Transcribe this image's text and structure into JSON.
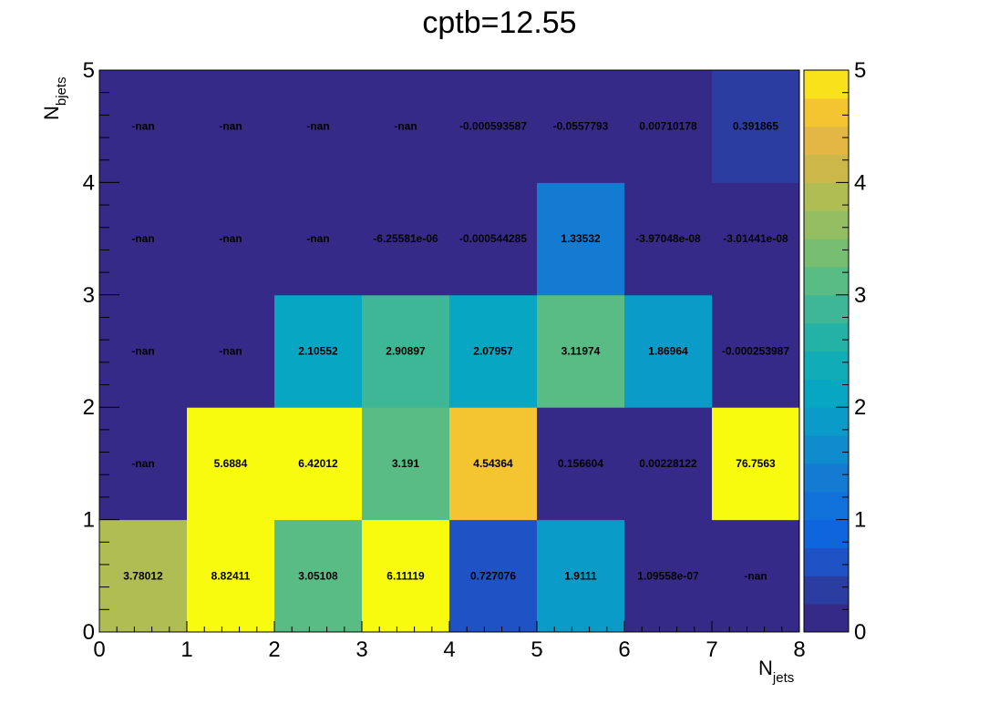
{
  "chart_data": {
    "type": "heatmap",
    "title": "cptb=12.55",
    "xlabel": {
      "main": "N",
      "sub": "jets"
    },
    "ylabel": {
      "main": "N",
      "sub": "bjets"
    },
    "xlim": [
      0,
      8
    ],
    "ylim": [
      0,
      5
    ],
    "zlim": [
      0,
      5
    ],
    "x_ticks": [
      "0",
      "1",
      "2",
      "3",
      "4",
      "5",
      "6",
      "7",
      "8"
    ],
    "y_ticks": [
      "0",
      "1",
      "2",
      "3",
      "4",
      "5"
    ],
    "colorbar_ticks": [
      "0",
      "1",
      "2",
      "3",
      "4",
      "5"
    ],
    "colorbar_levels": 20,
    "palette": [
      "#352a87",
      "#2b3da0",
      "#1f52c4",
      "#0f65dd",
      "#1171db",
      "#137cd2",
      "#0f8ccd",
      "#0b9bc8",
      "#07a6c2",
      "#11adb6",
      "#25b2a6",
      "#3db795",
      "#59bc84",
      "#77bd72",
      "#93bf62",
      "#b0bd53",
      "#cbb849",
      "#e2b743",
      "#f5c431",
      "#f9e11b",
      "#f9fb0e"
    ],
    "nan_color": "#352a87",
    "cells": [
      {
        "x": 0,
        "y": 0,
        "label": "3.78012",
        "value": 3.78012
      },
      {
        "x": 1,
        "y": 0,
        "label": "8.82411",
        "value": 8.82411
      },
      {
        "x": 2,
        "y": 0,
        "label": "3.05108",
        "value": 3.05108
      },
      {
        "x": 3,
        "y": 0,
        "label": "6.11119",
        "value": 6.11119
      },
      {
        "x": 4,
        "y": 0,
        "label": "0.727076",
        "value": 0.727076
      },
      {
        "x": 5,
        "y": 0,
        "label": "1.9111",
        "value": 1.9111
      },
      {
        "x": 6,
        "y": 0,
        "label": "1.09558e-07",
        "value": 1.09558e-07
      },
      {
        "x": 7,
        "y": 0,
        "label": "-nan",
        "value": null
      },
      {
        "x": 0,
        "y": 1,
        "label": "-nan",
        "value": null
      },
      {
        "x": 1,
        "y": 1,
        "label": "5.6884",
        "value": 5.6884
      },
      {
        "x": 2,
        "y": 1,
        "label": "6.42012",
        "value": 6.42012
      },
      {
        "x": 3,
        "y": 1,
        "label": "3.191",
        "value": 3.191
      },
      {
        "x": 4,
        "y": 1,
        "label": "4.54364",
        "value": 4.54364
      },
      {
        "x": 5,
        "y": 1,
        "label": "0.156604",
        "value": 0.156604
      },
      {
        "x": 6,
        "y": 1,
        "label": "0.00228122",
        "value": 0.00228122
      },
      {
        "x": 7,
        "y": 1,
        "label": "76.7563",
        "value": 76.7563
      },
      {
        "x": 0,
        "y": 2,
        "label": "-nan",
        "value": null
      },
      {
        "x": 1,
        "y": 2,
        "label": "-nan",
        "value": null
      },
      {
        "x": 2,
        "y": 2,
        "label": "2.10552",
        "value": 2.10552
      },
      {
        "x": 3,
        "y": 2,
        "label": "2.90897",
        "value": 2.90897
      },
      {
        "x": 4,
        "y": 2,
        "label": "2.07957",
        "value": 2.07957
      },
      {
        "x": 5,
        "y": 2,
        "label": "3.11974",
        "value": 3.11974
      },
      {
        "x": 6,
        "y": 2,
        "label": "1.86964",
        "value": 1.86964
      },
      {
        "x": 7,
        "y": 2,
        "label": "-0.000253987",
        "value": -0.000253987
      },
      {
        "x": 0,
        "y": 3,
        "label": "-nan",
        "value": null
      },
      {
        "x": 1,
        "y": 3,
        "label": "-nan",
        "value": null
      },
      {
        "x": 2,
        "y": 3,
        "label": "-nan",
        "value": null
      },
      {
        "x": 3,
        "y": 3,
        "label": "-6.25581e-06",
        "value": -6.25581e-06
      },
      {
        "x": 4,
        "y": 3,
        "label": "-0.000544285",
        "value": -0.000544285
      },
      {
        "x": 5,
        "y": 3,
        "label": "1.33532",
        "value": 1.33532
      },
      {
        "x": 6,
        "y": 3,
        "label": "-3.97048e-08",
        "value": -3.97048e-08
      },
      {
        "x": 7,
        "y": 3,
        "label": "-3.01441e-08",
        "value": -3.01441e-08
      },
      {
        "x": 0,
        "y": 4,
        "label": "-nan",
        "value": null
      },
      {
        "x": 1,
        "y": 4,
        "label": "-nan",
        "value": null
      },
      {
        "x": 2,
        "y": 4,
        "label": "-nan",
        "value": null
      },
      {
        "x": 3,
        "y": 4,
        "label": "-nan",
        "value": null
      },
      {
        "x": 4,
        "y": 4,
        "label": "-0.000593587",
        "value": -0.000593587
      },
      {
        "x": 5,
        "y": 4,
        "label": "-0.0557793",
        "value": -0.0557793
      },
      {
        "x": 6,
        "y": 4,
        "label": "0.00710178",
        "value": 0.00710178
      },
      {
        "x": 7,
        "y": 4,
        "label": "0.391865",
        "value": 0.391865
      }
    ]
  }
}
